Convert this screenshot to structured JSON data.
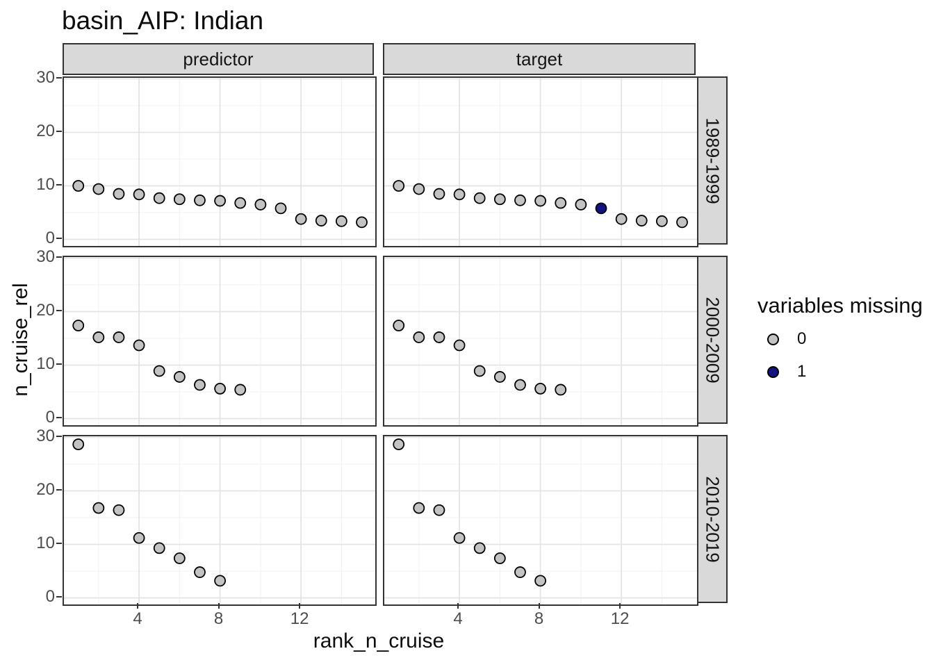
{
  "chart_data": {
    "type": "scatter",
    "title": "basin_AIP: Indian",
    "xlabel": "rank_n_cruise",
    "ylabel": "n_cruise_rel",
    "facet_cols": [
      "predictor",
      "target"
    ],
    "facet_rows": [
      "1989-1999",
      "2000-2009",
      "2010-2019"
    ],
    "x_ticks": [
      4,
      8,
      12
    ],
    "y_ticks": [
      0,
      10,
      20,
      30
    ],
    "xlim": [
      0.3,
      15.7
    ],
    "ylim": [
      -1.3,
      30.2
    ],
    "grid": {
      "x_major": [
        4,
        8,
        12
      ],
      "x_minor": [
        2,
        6,
        10,
        14
      ],
      "y_major": [
        0,
        10,
        20,
        30
      ],
      "y_minor": [
        5,
        15,
        25
      ]
    },
    "legend": {
      "title": "variables missing",
      "entries": [
        {
          "label": "0",
          "color": "#C3C3C3"
        },
        {
          "label": "1",
          "color": "#121280"
        }
      ]
    },
    "colors": {
      "point_fill": "#C3C3C3",
      "point_missing_fill": "#121280",
      "point_stroke": "#000000",
      "grid_major": "#E4E4E4",
      "grid_minor": "#F1F1F1",
      "strip_fill": "#D9D9D9",
      "panel_border": "#333333",
      "tick_label": "#4D4D4D"
    },
    "panels": [
      {
        "col": "predictor",
        "row": "1989-1999",
        "points": [
          {
            "rank": 1,
            "value": 10.0,
            "missing": 0
          },
          {
            "rank": 2,
            "value": 9.4,
            "missing": 0
          },
          {
            "rank": 3,
            "value": 8.5,
            "missing": 0
          },
          {
            "rank": 4,
            "value": 8.4,
            "missing": 0
          },
          {
            "rank": 5,
            "value": 7.7,
            "missing": 0
          },
          {
            "rank": 6,
            "value": 7.5,
            "missing": 0
          },
          {
            "rank": 7,
            "value": 7.3,
            "missing": 0
          },
          {
            "rank": 8,
            "value": 7.2,
            "missing": 0
          },
          {
            "rank": 9,
            "value": 6.8,
            "missing": 0
          },
          {
            "rank": 10,
            "value": 6.5,
            "missing": 0
          },
          {
            "rank": 11,
            "value": 5.8,
            "missing": 0
          },
          {
            "rank": 12,
            "value": 3.8,
            "missing": 0
          },
          {
            "rank": 13,
            "value": 3.5,
            "missing": 0
          },
          {
            "rank": 14,
            "value": 3.4,
            "missing": 0
          },
          {
            "rank": 15,
            "value": 3.2,
            "missing": 0
          }
        ]
      },
      {
        "col": "target",
        "row": "1989-1999",
        "points": [
          {
            "rank": 1,
            "value": 10.0,
            "missing": 0
          },
          {
            "rank": 2,
            "value": 9.4,
            "missing": 0
          },
          {
            "rank": 3,
            "value": 8.5,
            "missing": 0
          },
          {
            "rank": 4,
            "value": 8.4,
            "missing": 0
          },
          {
            "rank": 5,
            "value": 7.7,
            "missing": 0
          },
          {
            "rank": 6,
            "value": 7.5,
            "missing": 0
          },
          {
            "rank": 7,
            "value": 7.3,
            "missing": 0
          },
          {
            "rank": 8,
            "value": 7.2,
            "missing": 0
          },
          {
            "rank": 9,
            "value": 6.8,
            "missing": 0
          },
          {
            "rank": 10,
            "value": 6.5,
            "missing": 0
          },
          {
            "rank": 11,
            "value": 5.8,
            "missing": 1
          },
          {
            "rank": 12,
            "value": 3.8,
            "missing": 0
          },
          {
            "rank": 13,
            "value": 3.5,
            "missing": 0
          },
          {
            "rank": 14,
            "value": 3.4,
            "missing": 0
          },
          {
            "rank": 15,
            "value": 3.2,
            "missing": 0
          }
        ]
      },
      {
        "col": "predictor",
        "row": "2000-2009",
        "points": [
          {
            "rank": 1,
            "value": 17.4,
            "missing": 0
          },
          {
            "rank": 2,
            "value": 15.2,
            "missing": 0
          },
          {
            "rank": 3,
            "value": 15.2,
            "missing": 0
          },
          {
            "rank": 4,
            "value": 13.7,
            "missing": 0
          },
          {
            "rank": 5,
            "value": 8.9,
            "missing": 0
          },
          {
            "rank": 6,
            "value": 7.8,
            "missing": 0
          },
          {
            "rank": 7,
            "value": 6.3,
            "missing": 0
          },
          {
            "rank": 8,
            "value": 5.6,
            "missing": 0
          },
          {
            "rank": 9,
            "value": 5.4,
            "missing": 0
          }
        ]
      },
      {
        "col": "target",
        "row": "2000-2009",
        "points": [
          {
            "rank": 1,
            "value": 17.4,
            "missing": 0
          },
          {
            "rank": 2,
            "value": 15.2,
            "missing": 0
          },
          {
            "rank": 3,
            "value": 15.2,
            "missing": 0
          },
          {
            "rank": 4,
            "value": 13.7,
            "missing": 0
          },
          {
            "rank": 5,
            "value": 8.9,
            "missing": 0
          },
          {
            "rank": 6,
            "value": 7.8,
            "missing": 0
          },
          {
            "rank": 7,
            "value": 6.3,
            "missing": 0
          },
          {
            "rank": 8,
            "value": 5.6,
            "missing": 0
          },
          {
            "rank": 9,
            "value": 5.4,
            "missing": 0
          }
        ]
      },
      {
        "col": "predictor",
        "row": "2010-2019",
        "points": [
          {
            "rank": 1,
            "value": 28.7,
            "missing": 0
          },
          {
            "rank": 2,
            "value": 16.8,
            "missing": 0
          },
          {
            "rank": 3,
            "value": 16.4,
            "missing": 0
          },
          {
            "rank": 4,
            "value": 11.2,
            "missing": 0
          },
          {
            "rank": 5,
            "value": 9.3,
            "missing": 0
          },
          {
            "rank": 6,
            "value": 7.4,
            "missing": 0
          },
          {
            "rank": 7,
            "value": 4.8,
            "missing": 0
          },
          {
            "rank": 8,
            "value": 3.2,
            "missing": 0
          }
        ]
      },
      {
        "col": "target",
        "row": "2010-2019",
        "points": [
          {
            "rank": 1,
            "value": 28.7,
            "missing": 0
          },
          {
            "rank": 2,
            "value": 16.8,
            "missing": 0
          },
          {
            "rank": 3,
            "value": 16.4,
            "missing": 0
          },
          {
            "rank": 4,
            "value": 11.2,
            "missing": 0
          },
          {
            "rank": 5,
            "value": 9.3,
            "missing": 0
          },
          {
            "rank": 6,
            "value": 7.4,
            "missing": 0
          },
          {
            "rank": 7,
            "value": 4.8,
            "missing": 0
          },
          {
            "rank": 8,
            "value": 3.2,
            "missing": 0
          }
        ]
      }
    ]
  }
}
